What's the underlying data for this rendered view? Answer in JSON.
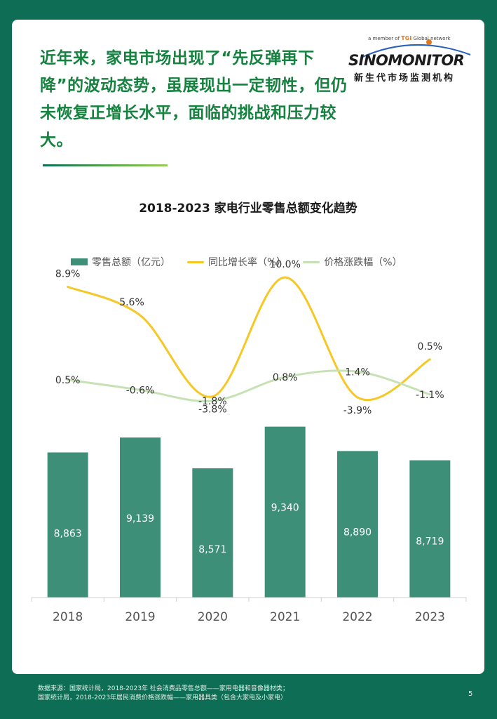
{
  "headline": "近年来，家电市场出现了“先反弹再下降”的波动态势，虽展现出一定韧性，但仍未恢复正增长水平，面临的挑战和压力较大。",
  "logo": {
    "tagline_prefix": "a member of",
    "tagline_brand": "TGI",
    "tagline_suffix": "Global network",
    "name": "SINOMONITOR",
    "subtitle": "新生代市场监测机构"
  },
  "legend": {
    "bar": "零售总额（亿元）",
    "yoy": "同比增长率（%）",
    "price": "价格涨跌幅（%）"
  },
  "colors": {
    "bar": "#3e8f78",
    "yoy": "#f5c826",
    "price": "#c6e2b4",
    "headline": "#15823f",
    "frame": "#0e6e55"
  },
  "chart_data": {
    "type": "bar",
    "title": "2018-2023  家电行业零售总额变化趋势",
    "categories": [
      "2018",
      "2019",
      "2020",
      "2021",
      "2022",
      "2023"
    ],
    "series": [
      {
        "name": "零售总额（亿元）",
        "type": "bar",
        "values": [
          8863,
          9139,
          8571,
          9340,
          8890,
          8719
        ],
        "labels": [
          "8,863",
          "9,139",
          "8,571",
          "9,340",
          "8,890",
          "8,719"
        ]
      },
      {
        "name": "同比增长率（%）",
        "type": "line",
        "values": [
          8.9,
          5.6,
          -3.8,
          10.0,
          -3.9,
          0.5
        ],
        "labels": [
          "8.9%",
          "5.6%",
          "-3.8%",
          "10.0%",
          "-3.9%",
          "0.5%"
        ]
      },
      {
        "name": "价格涨跌幅（%）",
        "type": "line",
        "values": [
          0.5,
          -0.6,
          -1.8,
          0.8,
          1.4,
          -1.1
        ],
        "labels": [
          "0.5%",
          "-0.6%",
          "-1.8%",
          "0.8%",
          "1.4%",
          "-1.1%"
        ]
      }
    ],
    "legend_position": "top",
    "grid": false
  },
  "footer": {
    "line1": "数据来源：国家统计局，2018-2023年 社会消费品零售总额——家用电器和音像器材类；",
    "line2": "国家统计局，2018-2023年居民消费价格涨跌幅——家用器具类（包含大家电及小家电）"
  },
  "page_number": "5"
}
